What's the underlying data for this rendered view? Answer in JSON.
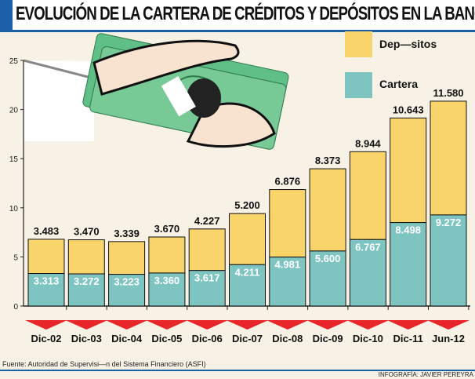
{
  "title": "EVOLUCIÓN DE LA CARTERA DE CRÉDITOS Y DEPÓSITOS EN LA BANCA",
  "source": "Fuente: Autoridad de Supervisi—n del Sistema Financiero (ASFI)",
  "credit": "INFOGRAFÍA: JAVIER PEREYRA",
  "chart_data": {
    "type": "bar",
    "stacked": true,
    "categories": [
      "Dic-02",
      "Dic-03",
      "Dic-04",
      "Dic-05",
      "Dic-06",
      "Dic-07",
      "Dic-08",
      "Dic-09",
      "Dic-10",
      "Dic-11",
      "Jun-12"
    ],
    "series": [
      {
        "name": "Cartera",
        "color": "#7ec4c1",
        "values": [
          3.313,
          3.272,
          3.223,
          3.36,
          3.617,
          4.211,
          4.981,
          5.6,
          6.767,
          8.498,
          9.272
        ],
        "labels": [
          "3.313",
          "3.272",
          "3.223",
          "3.360",
          "3.617",
          "4.211",
          "4.981",
          "5.600",
          "6.767",
          "8.498",
          "9.272"
        ]
      },
      {
        "name": "Dep—sitos",
        "color": "#f8d46a",
        "values": [
          3.483,
          3.47,
          3.339,
          3.67,
          4.227,
          5.2,
          6.876,
          8.373,
          8.944,
          10.643,
          11.58
        ],
        "labels": [
          "3.483",
          "3.470",
          "3.339",
          "3.670",
          "4.227",
          "5.200",
          "6.876",
          "8.373",
          "8.944",
          "10.643",
          "11.580"
        ]
      }
    ],
    "ylim": [
      0,
      25
    ],
    "yticks": [
      "0",
      "5",
      "10",
      "15",
      "20",
      "25"
    ],
    "grid": false,
    "legend": "top-right"
  }
}
